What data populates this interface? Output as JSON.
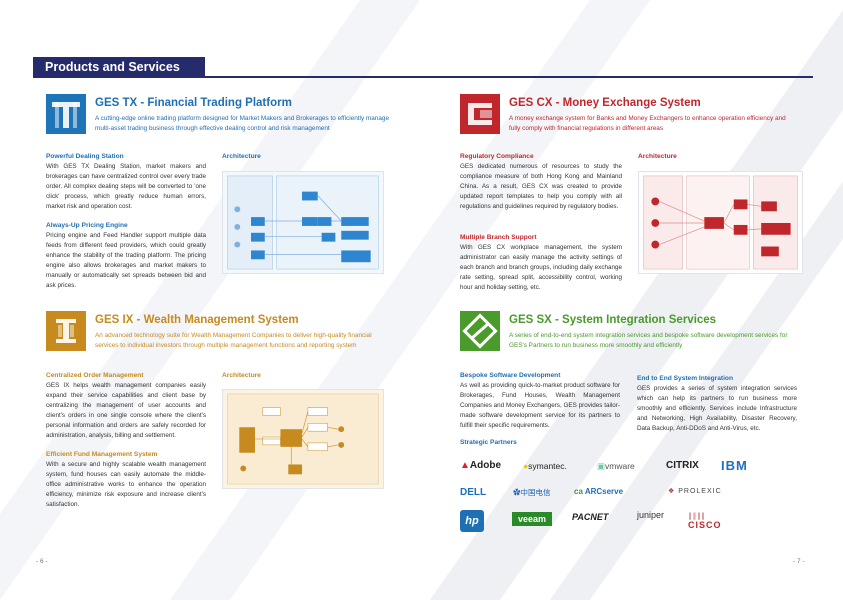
{
  "header": {
    "title": "Products and Services"
  },
  "products": {
    "tx": {
      "title": "GES TX - Financial Trading Platform",
      "desc": "A cutting-edge online trading platform designed for Market Makers and Brokerages to efficiently manage multi-asset trading business through effective dealing control and risk management",
      "sections": [
        {
          "head": "Powerful Dealing Station",
          "text": "With GES TX Dealing Station, market makers and brokerages can have centralized control over every trade order. All complex dealing steps will be converted to 'one click' process, which greatly reduce human errors, market risk and operation cost."
        },
        {
          "head": "Always-Up Pricing Engine",
          "text": "Pricing engine and Feed Handler support multiple data feeds from different feed providers, which could greatly enhance the stability of the trading platform. The pricing engine also allows brokerages and market makers to manually or automatically set spreads between bid and ask prices."
        }
      ],
      "arch_label": "Architecture",
      "color": "#1f6fb3"
    },
    "cx": {
      "title": "GES CX - Money Exchange System",
      "desc": "A money exchange system for Banks and Money Exchangers to enhance operation efficiency and fully comply with financial regulations in different areas",
      "sections": [
        {
          "head": "Regulatory Compliance",
          "text": "GES dedicated numerous of resources to study the compliance measure of both Hong Kong and Mainland China. As a result, GES CX was created to provide updated report templates to help you comply with all regulations and guidelines required by regulatory bodies."
        },
        {
          "head": "Multiple Branch Support",
          "text": "With GES CX workplace management, the system administrator can easily manage the activity settings of each branch and branch groups, including daily exchange rate setting, spread split, accessibility control, working hour and holiday setting, etc."
        }
      ],
      "arch_label": "Architecture",
      "color": "#c0272d"
    },
    "ix": {
      "title": "GES IX - Wealth Management System",
      "desc": "An advanced technology suite for Wealth Management Companies to deliver high-quality financial services to individual investors through multiple management functions and reporting system",
      "sections": [
        {
          "head": "Centralized Order Management",
          "text": "GES IX helps wealth management companies easily expand their service capabilities and client base by centralizing the management of user accounts and client's orders in one single console where the client's personal information and orders are safely recorded for administration, analysis, billing and settlement."
        },
        {
          "head": "Efficient Fund Management System",
          "text": "With a secure and highly scalable wealth management system, fund houses can easily automate the middle-office administrative works to enhance the operation efficiency, minimize risk exposure and increase client's satisfaction."
        }
      ],
      "arch_label": "Architecture",
      "color": "#c68a1e"
    },
    "sx": {
      "title": "GES SX  - System Integration Services",
      "desc": "A series of end-to-end system integration services and bespoke software development services for GES's Partners to run business more smoothly and efficiently",
      "sections": [
        {
          "head": "Bespoke Software Development",
          "text": "As well as providing quick-to-market product software for Brokerages, Fund Houses, Wealth Management Companies and Money Exchangers, GES provides tailor-made software development service for its partners to fulfill their specific requirements."
        },
        {
          "head": "End to End System Integration",
          "text": "GES provides a series of system integration services which can help its partners to run business more smoothly and efficiently. Services include Infrastructure and Networking, High Availability, Disaster Recovery, Data Backup, Anti-DDoS and Anti-Virus, etc."
        }
      ],
      "partners_head": "Strategic Partners",
      "color": "#4a9a2c"
    }
  },
  "partners": [
    {
      "name": "Adobe",
      "color": "#222222"
    },
    {
      "name": "symantec.",
      "color": "#222222"
    },
    {
      "name": "vmware",
      "color": "#555555"
    },
    {
      "name": "CITRIX",
      "color": "#222222"
    },
    {
      "name": "IBM",
      "color": "#1f70c1"
    },
    {
      "name": "DELL",
      "color": "#1a6fc0"
    },
    {
      "name": "中国电信",
      "color": "#1a5fb4"
    },
    {
      "name": "ARCserve",
      "color": "#1a6fc0"
    },
    {
      "name": "PROLEXIC",
      "color": "#444444"
    },
    {
      "name": "hp",
      "color": "#1f6fb3"
    },
    {
      "name": "veeam",
      "color": "#2a8a2a"
    },
    {
      "name": "PACNET",
      "color": "#222222"
    },
    {
      "name": "juniper",
      "color": "#333333"
    },
    {
      "name": "CISCO",
      "color": "#c0272d"
    }
  ],
  "footer": {
    "page_left": "- 6 -",
    "page_right": "- 7 -"
  }
}
